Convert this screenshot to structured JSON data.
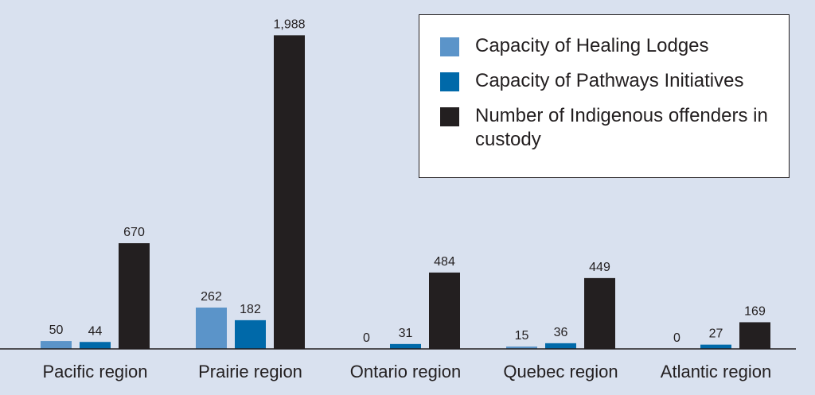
{
  "chart_data": {
    "type": "bar",
    "categories": [
      "Pacific region",
      "Prairie region",
      "Ontario region",
      "Quebec region",
      "Atlantic region"
    ],
    "series": [
      {
        "name": "Capacity of Healing Lodges",
        "values": [
          50,
          262,
          0,
          15,
          0
        ],
        "labels": [
          "50",
          "262",
          "0",
          "15",
          "0"
        ],
        "color": "#5b94c9"
      },
      {
        "name": "Capacity of Pathways Initiatives",
        "values": [
          44,
          182,
          31,
          36,
          27
        ],
        "labels": [
          "44",
          "182",
          "31",
          "36",
          "27"
        ],
        "color": "#0069a9"
      },
      {
        "name": "Number of Indigenous offenders in custody",
        "values": [
          670,
          1988,
          484,
          449,
          169
        ],
        "labels": [
          "670",
          "1,988",
          "484",
          "449",
          "169"
        ],
        "color": "#231f20"
      }
    ],
    "ylim": [
      0,
      2000
    ],
    "grid": false,
    "legend_position": "top-right",
    "background_color": "#d9e1ef"
  }
}
